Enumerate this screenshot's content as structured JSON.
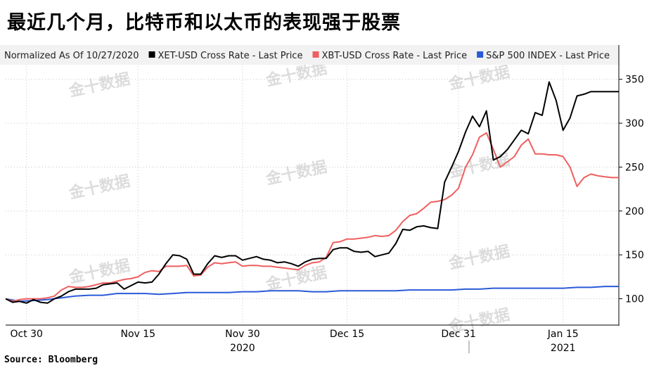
{
  "headline": "最近几个月，比特币和以太币的表现强于股票",
  "source": "Source: Bloomberg",
  "watermark": "金十数据",
  "chart_data": {
    "type": "line",
    "title": "",
    "legend_placement": "top",
    "grid": true,
    "y_axis_position": "right",
    "normalized_note": "Normalized As Of 10/27/2020",
    "ylim": [
      70,
      365
    ],
    "y_ticks": [
      100,
      150,
      200,
      250,
      300,
      350
    ],
    "x_range": [
      0,
      88
    ],
    "x_ticks": [
      {
        "x": 3,
        "label": "Oct 30"
      },
      {
        "x": 19,
        "label": "Nov 15"
      },
      {
        "x": 34,
        "label": "Nov 30"
      },
      {
        "x": 49,
        "label": "Dec 15"
      },
      {
        "x": 65,
        "label": "Dec 31"
      },
      {
        "x": 80,
        "label": "Jan 15"
      }
    ],
    "year_labels": [
      {
        "x": 34,
        "label": "2020"
      },
      {
        "x": 80,
        "label": "2021"
      }
    ],
    "year_divider_x": 66.5,
    "series": [
      {
        "name": "XET-USD Cross Rate - Last Price",
        "color": "#000000",
        "x": [
          0,
          1,
          2,
          3,
          4,
          5,
          6,
          7,
          8,
          9,
          10,
          11,
          12,
          13,
          14,
          15,
          16,
          17,
          18,
          19,
          20,
          21,
          22,
          23,
          24,
          25,
          26,
          27,
          28,
          29,
          30,
          31,
          32,
          33,
          34,
          35,
          36,
          37,
          38,
          39,
          40,
          41,
          42,
          43,
          44,
          45,
          46,
          47,
          48,
          49,
          50,
          51,
          52,
          53,
          54,
          55,
          56,
          57,
          58,
          59,
          60,
          61,
          62,
          63,
          64,
          65,
          66,
          67,
          68,
          69,
          70,
          71,
          72,
          73,
          74,
          75,
          76,
          77,
          78,
          79,
          80,
          81,
          82,
          83,
          84,
          85,
          86,
          87,
          88
        ],
        "values": [
          100,
          96,
          97,
          95,
          99,
          96,
          95,
          100,
          103,
          108,
          111,
          111,
          111,
          112,
          116,
          117,
          118,
          111,
          115,
          119,
          118,
          119,
          128,
          140,
          150,
          149,
          145,
          128,
          128,
          140,
          149,
          147,
          149,
          149,
          144,
          146,
          148,
          145,
          144,
          141,
          142,
          140,
          137,
          142,
          145,
          146,
          146,
          156,
          158,
          158,
          154,
          153,
          154,
          148,
          150,
          152,
          163,
          179,
          178,
          182,
          183,
          181,
          180,
          233,
          250,
          268,
          290,
          308,
          296,
          314,
          258,
          262,
          270,
          281,
          292,
          288,
          312,
          309,
          347,
          326,
          292,
          306,
          331,
          333,
          336,
          336,
          336,
          336,
          336
        ]
      },
      {
        "name": "XBT-USD Cross Rate - Last Price",
        "color": "#ef5f5f",
        "x": [
          0,
          1,
          2,
          3,
          4,
          5,
          6,
          7,
          8,
          9,
          10,
          11,
          12,
          13,
          14,
          15,
          16,
          17,
          18,
          19,
          20,
          21,
          22,
          23,
          24,
          25,
          26,
          27,
          28,
          29,
          30,
          31,
          32,
          33,
          34,
          35,
          36,
          37,
          38,
          39,
          40,
          41,
          42,
          43,
          44,
          45,
          46,
          47,
          48,
          49,
          50,
          51,
          52,
          53,
          54,
          55,
          56,
          57,
          58,
          59,
          60,
          61,
          62,
          63,
          64,
          65,
          66,
          67,
          68,
          69,
          70,
          71,
          72,
          73,
          74,
          75,
          76,
          77,
          78,
          79,
          80,
          81,
          82,
          83,
          84,
          85,
          86,
          87,
          88
        ],
        "values": [
          100,
          97,
          99,
          100,
          100,
          100,
          101,
          103,
          110,
          114,
          113,
          113,
          114,
          116,
          118,
          118,
          120,
          122,
          123,
          125,
          130,
          132,
          131,
          137,
          137,
          137,
          138,
          126,
          127,
          136,
          141,
          140,
          141,
          142,
          137,
          138,
          138,
          137,
          137,
          136,
          135,
          134,
          133,
          138,
          141,
          142,
          147,
          164,
          165,
          168,
          168,
          169,
          170,
          172,
          171,
          172,
          178,
          188,
          195,
          197,
          203,
          210,
          211,
          213,
          218,
          226,
          250,
          264,
          284,
          289,
          270,
          250,
          256,
          262,
          275,
          282,
          265,
          265,
          264,
          264,
          262,
          250,
          228,
          238,
          242,
          240,
          239,
          238,
          238
        ]
      },
      {
        "name": "S&P 500 INDEX - Last Price",
        "color": "#2a5bd7",
        "x": [
          0,
          2,
          4,
          6,
          8,
          10,
          12,
          14,
          16,
          18,
          20,
          22,
          24,
          26,
          28,
          30,
          32,
          34,
          36,
          38,
          40,
          42,
          44,
          46,
          48,
          50,
          52,
          54,
          56,
          58,
          60,
          62,
          64,
          66,
          68,
          70,
          72,
          74,
          76,
          78,
          80,
          82,
          84,
          86,
          88
        ],
        "values": [
          100,
          97,
          98,
          99,
          101,
          103,
          104,
          104,
          106,
          106,
          106,
          105,
          106,
          107,
          107,
          107,
          107,
          108,
          108,
          109,
          109,
          109,
          108,
          108,
          109,
          109,
          109,
          109,
          109,
          110,
          110,
          110,
          110,
          111,
          111,
          112,
          112,
          112,
          112,
          112,
          112,
          113,
          113,
          114,
          114
        ]
      }
    ]
  }
}
